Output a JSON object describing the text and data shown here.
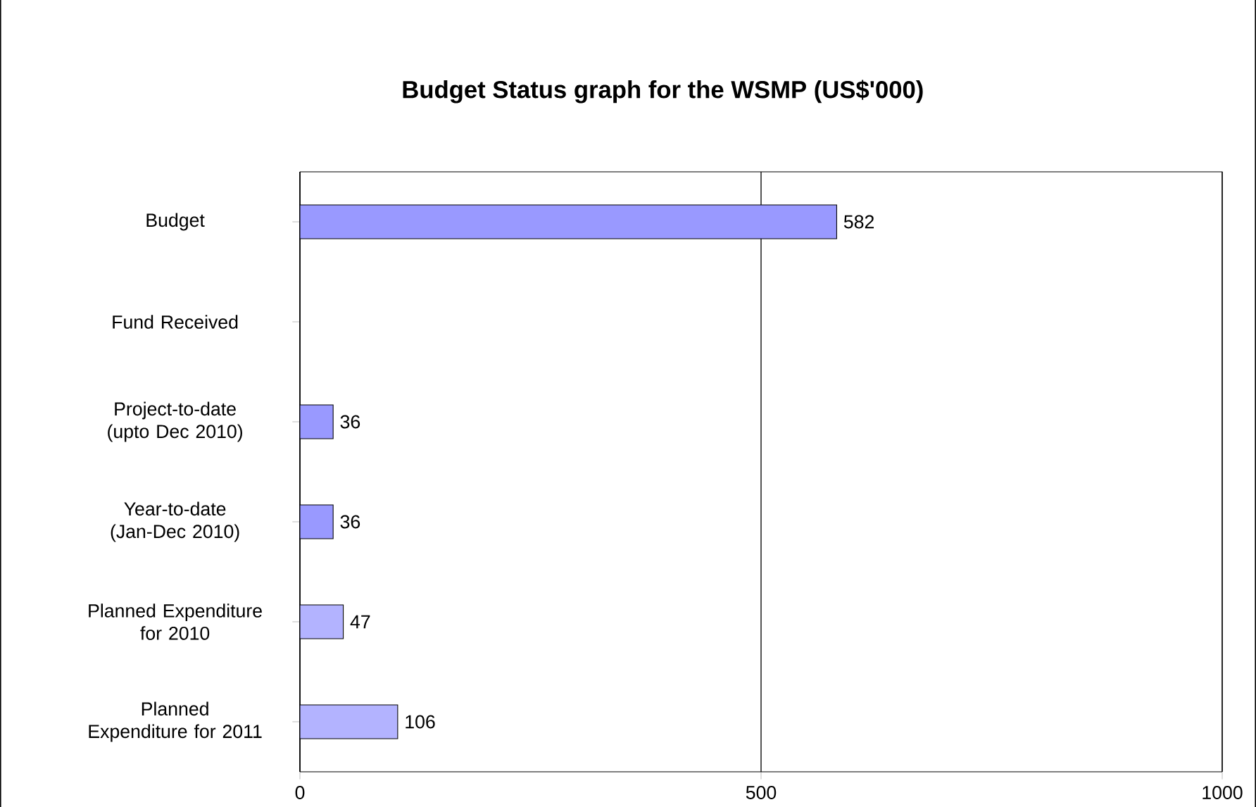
{
  "chart_data": {
    "type": "bar",
    "orientation": "horizontal",
    "title": "Budget Status graph for the WSMP (US$'000)",
    "categories": [
      "Budget",
      "Fund Received",
      "Project-to-date (upto Dec 2010)",
      "Year-to-date (Jan-Dec 2010)",
      "Planned Expenditure for 2010",
      "Planned Expenditure for 2011"
    ],
    "values": [
      582,
      null,
      36,
      36,
      47,
      106
    ],
    "colors": [
      "#9999ff",
      null,
      "#9999ff",
      "#9999ff",
      "#b3b3ff",
      "#b3b3ff"
    ],
    "xlim": [
      0,
      1000
    ],
    "xticks": [
      0,
      500,
      1000
    ],
    "grid": "x",
    "data_labels": true
  }
}
